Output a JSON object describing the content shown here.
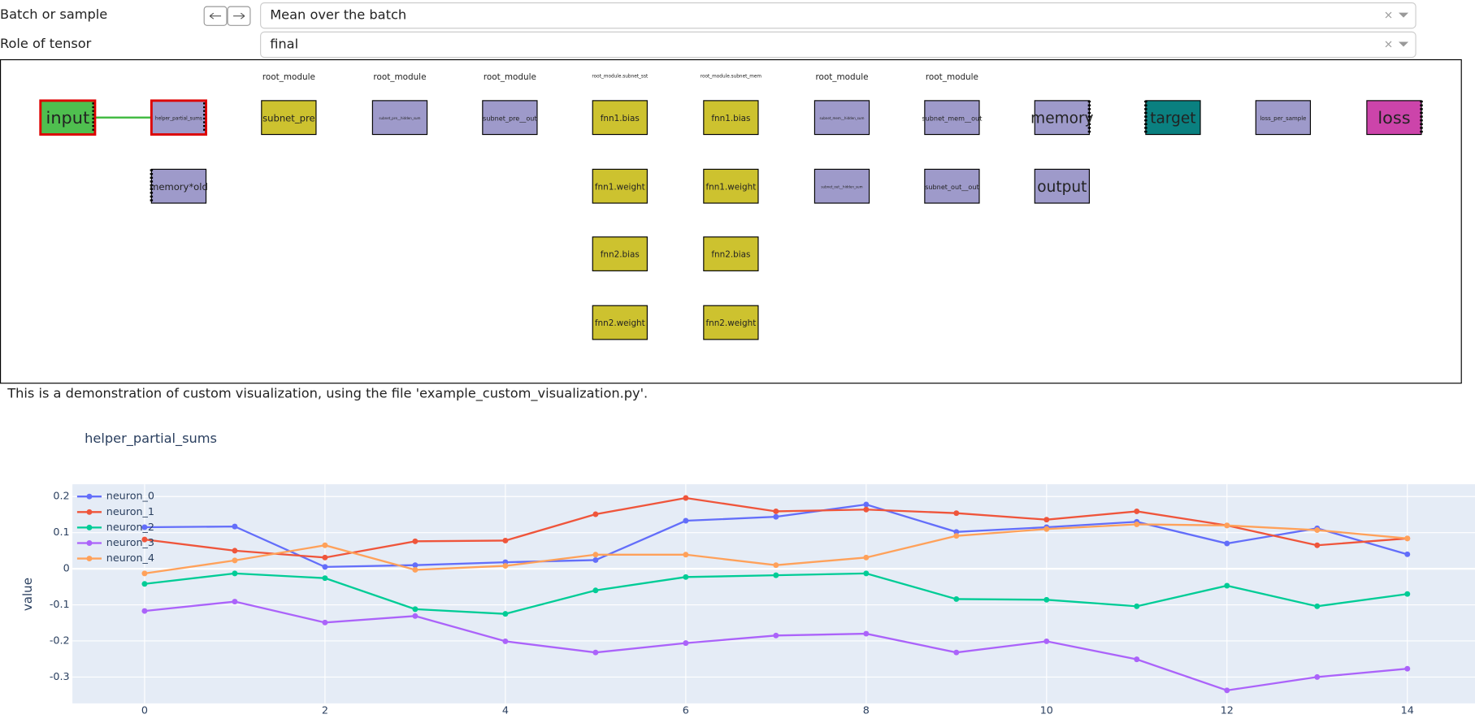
{
  "controls": {
    "batch_label": "Batch or sample",
    "batch_value": "Mean over the batch",
    "role_label": "Role of tensor",
    "role_value": "final"
  },
  "graph": {
    "groups": [
      "root_module",
      "root_module",
      "root_module",
      "root_module.subnet_sst",
      "root_module.subnet_mem",
      "root_module",
      "root_module"
    ],
    "nodes": [
      {
        "label": "input",
        "color": "#4fbf4f"
      },
      {
        "label": "helper_partial_sums",
        "color": "#9e9aca"
      },
      {
        "label": "memory*old",
        "color": "#9e9aca"
      },
      {
        "label": "subnet_pre",
        "color": "#cdc22f"
      },
      {
        "label": "subnet_pre__hidden_sum",
        "color": "#9e9aca"
      },
      {
        "label": "subnet_pre__out",
        "color": "#9e9aca"
      },
      {
        "label": "fnn1.bias",
        "color": "#cdc22f"
      },
      {
        "label": "fnn1.weight",
        "color": "#cdc22f"
      },
      {
        "label": "fnn2.bias",
        "color": "#cdc22f"
      },
      {
        "label": "fnn2.weight",
        "color": "#cdc22f"
      },
      {
        "label": "fnn1.bias",
        "color": "#cdc22f"
      },
      {
        "label": "fnn1.weight",
        "color": "#cdc22f"
      },
      {
        "label": "fnn2.bias",
        "color": "#cdc22f"
      },
      {
        "label": "fnn2.weight",
        "color": "#cdc22f"
      },
      {
        "label": "subnet_mem__hidden_sum",
        "color": "#9e9aca"
      },
      {
        "label": "subnet_out__hidden_sum",
        "color": "#9e9aca"
      },
      {
        "label": "subnet_mem__out",
        "color": "#9e9aca"
      },
      {
        "label": "subnet_out__out",
        "color": "#9e9aca"
      },
      {
        "label": "memory",
        "color": "#9e9aca"
      },
      {
        "label": "output",
        "color": "#9e9aca"
      },
      {
        "label": "target",
        "color": "#0a8080"
      },
      {
        "label": "loss_per_sample",
        "color": "#9e9aca"
      },
      {
        "label": "loss",
        "color": "#cc44aa"
      }
    ]
  },
  "description": "This is a demonstration of custom visualization, using the file 'example_custom_visualization.py'.",
  "chart_data": {
    "type": "line",
    "title": "helper_partial_sums",
    "y_label": "value",
    "x": [
      0,
      1,
      2,
      3,
      4,
      5,
      6,
      7,
      8,
      9,
      10,
      11,
      12,
      13,
      14
    ],
    "xlim": [
      -0.8,
      14.75
    ],
    "xticks": [
      0,
      2,
      4,
      6,
      8,
      10,
      12,
      14
    ],
    "ylim": [
      -0.373,
      0.234
    ],
    "yticks": [
      -0.3,
      -0.2,
      -0.1,
      0,
      0.1,
      0.2
    ],
    "grid": true,
    "legend": "top-left",
    "series": [
      {
        "name": "neuron_0",
        "color": "#636efa",
        "values": [
          0.115,
          0.117,
          0.005,
          0.01,
          0.018,
          0.024,
          0.133,
          0.144,
          0.178,
          0.102,
          0.115,
          0.13,
          0.07,
          0.112,
          0.04
        ]
      },
      {
        "name": "neuron_1",
        "color": "#ef553b",
        "values": [
          0.081,
          0.05,
          0.031,
          0.076,
          0.078,
          0.151,
          0.196,
          0.159,
          0.164,
          0.154,
          0.136,
          0.159,
          0.12,
          0.065,
          0.084
        ]
      },
      {
        "name": "neuron_2",
        "color": "#00cc96",
        "values": [
          -0.042,
          -0.013,
          -0.026,
          -0.112,
          -0.125,
          -0.06,
          -0.023,
          -0.018,
          -0.013,
          -0.084,
          -0.086,
          -0.104,
          -0.047,
          -0.104,
          -0.07
        ]
      },
      {
        "name": "neuron_3",
        "color": "#ab63fa",
        "values": [
          -0.117,
          -0.091,
          -0.149,
          -0.131,
          -0.201,
          -0.232,
          -0.206,
          -0.185,
          -0.18,
          -0.232,
          -0.201,
          -0.251,
          -0.337,
          -0.3,
          -0.277
        ]
      },
      {
        "name": "neuron_4",
        "color": "#ffa15a",
        "values": [
          -0.013,
          0.023,
          0.065,
          -0.003,
          0.008,
          0.039,
          0.039,
          0.01,
          0.031,
          0.091,
          0.11,
          0.123,
          0.12,
          0.107,
          0.084
        ]
      }
    ]
  }
}
